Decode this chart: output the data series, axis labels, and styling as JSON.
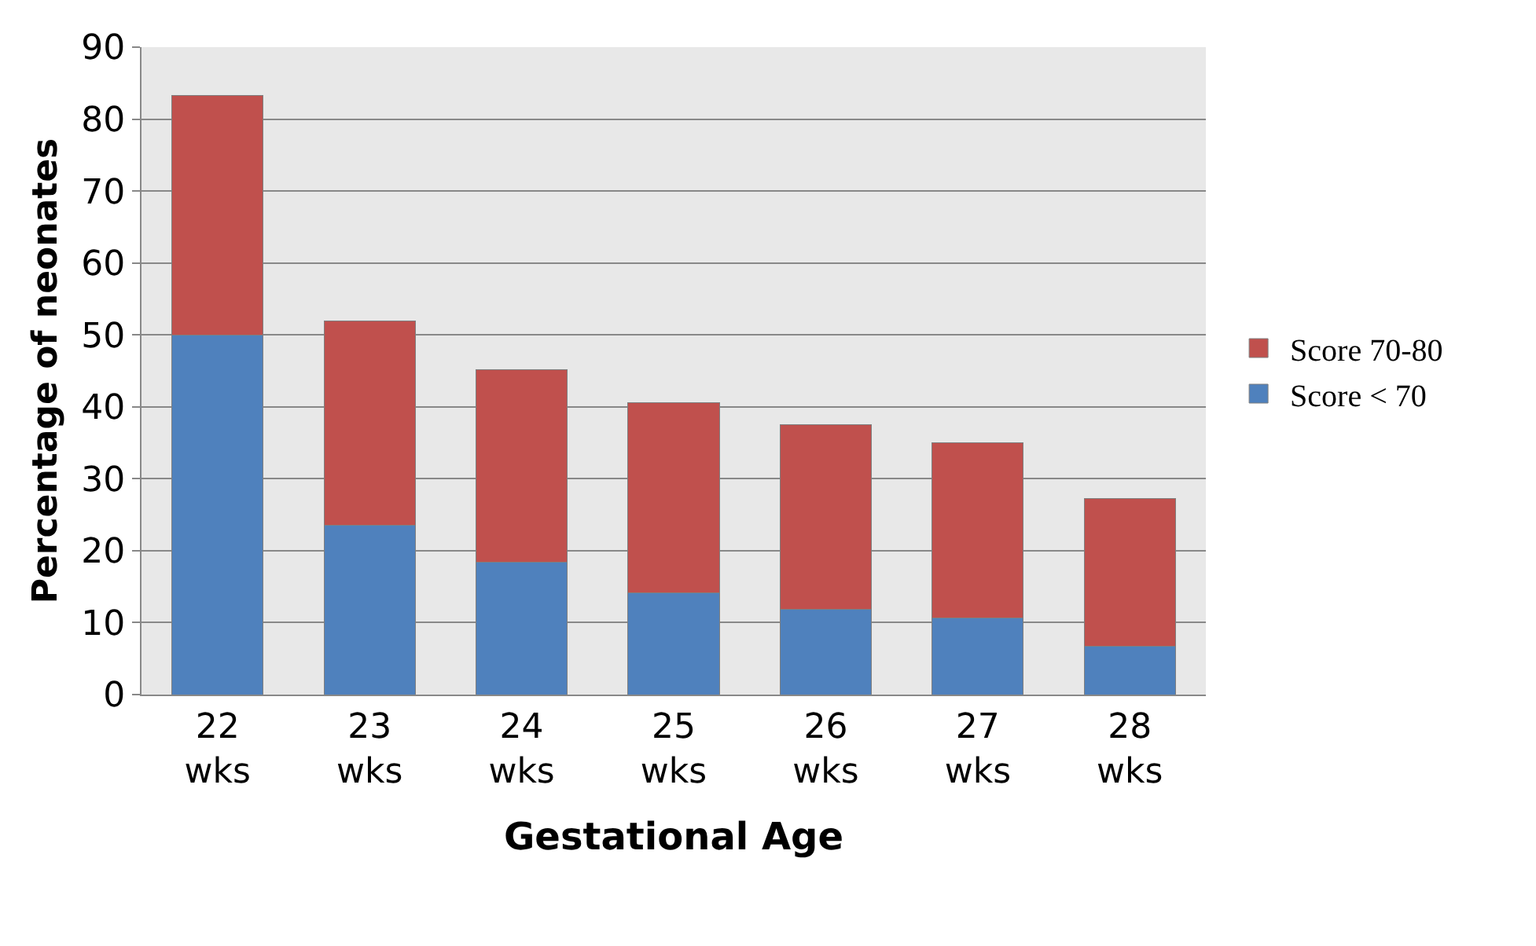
{
  "chart_data": {
    "type": "bar",
    "stacked": true,
    "xlabel": "Gestational Age",
    "ylabel": "Percentage of neonates",
    "categories": [
      "22 wks",
      "23 wks",
      "24 wks",
      "25 wks",
      "26 wks",
      "27 wks",
      "28 wks"
    ],
    "series": [
      {
        "name": "Score < 70",
        "color": "#4f81bd",
        "values": [
          50,
          23.5,
          18.4,
          14.2,
          11.8,
          10.6,
          6.7
        ]
      },
      {
        "name": "Score 70-80",
        "color": "#c0504d",
        "values": [
          33.3,
          28.4,
          26.8,
          26.4,
          25.7,
          24.4,
          20.6
        ]
      }
    ],
    "ylim": [
      0,
      90
    ],
    "yticks": [
      0,
      10,
      20,
      30,
      40,
      50,
      60,
      70,
      80,
      90
    ],
    "grid": "y",
    "legend": "right"
  }
}
